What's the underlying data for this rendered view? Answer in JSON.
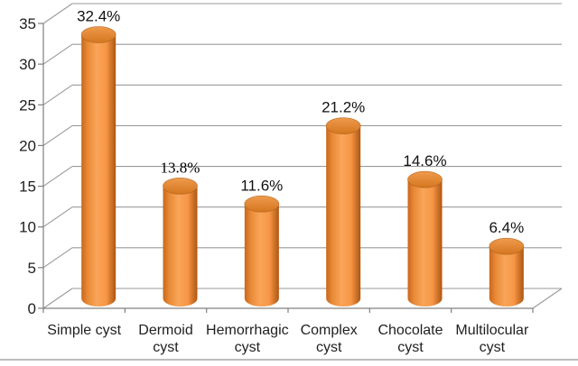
{
  "chart_data": {
    "type": "bar",
    "subtype": "3d-cylinder",
    "title": "",
    "xlabel": "",
    "ylabel": "",
    "categories": [
      "Simple cyst",
      "Dermoid cyst",
      "Hemorrhagic cyst",
      "Complex cyst",
      "Chocolate cyst",
      "Multilocular cyst"
    ],
    "category_label_lines": [
      [
        "Simple cyst"
      ],
      [
        "Dermoid",
        "cyst"
      ],
      [
        "Hemorrhagic",
        "cyst"
      ],
      [
        "Complex",
        "cyst"
      ],
      [
        "Chocolate",
        "cyst"
      ],
      [
        "Multilocular",
        "cyst"
      ]
    ],
    "values": [
      32.4,
      13.8,
      11.6,
      21.2,
      14.6,
      6.4
    ],
    "data_labels": [
      "32.4%",
      "13.8%",
      "11.6%",
      "21.2%",
      "14.6%",
      "6.4%"
    ],
    "ylim": [
      0,
      35
    ],
    "ytick_step": 5,
    "ytick_labels": [
      "0",
      "5",
      "10",
      "15",
      "20",
      "25",
      "30",
      "35"
    ],
    "grid": true,
    "legend_position": "none",
    "colors": {
      "bar_base": "#F79646",
      "bar_highlight": "#F9A55A",
      "bar_shadow_left": "#C9671C",
      "bar_shadow_right": "#AE5610",
      "bar_top_light": "#EF9A4D",
      "bar_top_dark": "#D4771F",
      "bar_top_rim": "#A9570E",
      "gridline": "#9A9A9A",
      "axis_line": "#808080",
      "axis_text": "#1F1F1F",
      "data_label_text": "#111111",
      "bottom_border": "#BDBDBD",
      "background": "#FFFFFF"
    }
  }
}
